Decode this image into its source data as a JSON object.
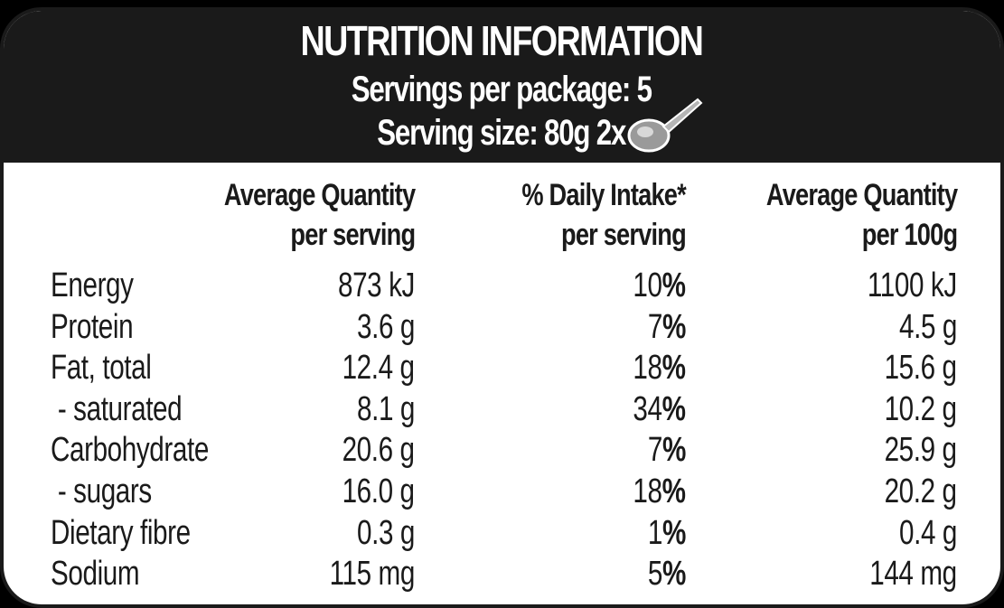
{
  "header": {
    "title": "NUTRITION INFORMATION",
    "servings": "Servings per package: 5",
    "serving_size": "Serving size: 80g 2x"
  },
  "columns": [
    {
      "line1": "Average Quantity",
      "line2": "per serving"
    },
    {
      "line1": "% Daily Intake*",
      "line2": "per serving"
    },
    {
      "line1": "Average Quantity",
      "line2": "per 100g"
    }
  ],
  "rows": [
    {
      "name": "Energy",
      "per_serving": "873 kJ",
      "daily_intake": "10",
      "per_100g": "1100 kJ"
    },
    {
      "name": "Protein",
      "per_serving": "3.6 g",
      "daily_intake": "7",
      "per_100g": "4.5 g"
    },
    {
      "name": "Fat, total",
      "per_serving": "12.4 g",
      "daily_intake": "18",
      "per_100g": "15.6 g"
    },
    {
      "name": " - saturated",
      "per_serving": "8.1 g",
      "daily_intake": "34",
      "per_100g": "10.2 g"
    },
    {
      "name": "Carbohydrate",
      "per_serving": "20.6 g",
      "daily_intake": "7",
      "per_100g": "25.9 g"
    },
    {
      "name": " - sugars",
      "per_serving": "16.0 g",
      "daily_intake": "18",
      "per_100g": "20.2 g"
    },
    {
      "name": "Dietary fibre",
      "per_serving": "0.3 g",
      "daily_intake": "1",
      "per_100g": "0.4 g"
    },
    {
      "name": "Sodium",
      "per_serving": "115 mg",
      "daily_intake": "5",
      "per_100g": "144 mg"
    }
  ],
  "percent_symbol": "%",
  "icons": {
    "serving": "spoon-icon"
  },
  "colors": {
    "header_bg": "#1a1a1a",
    "header_text": "#ffffff",
    "body_bg": "#ffffff",
    "text": "#1a1a1a"
  }
}
